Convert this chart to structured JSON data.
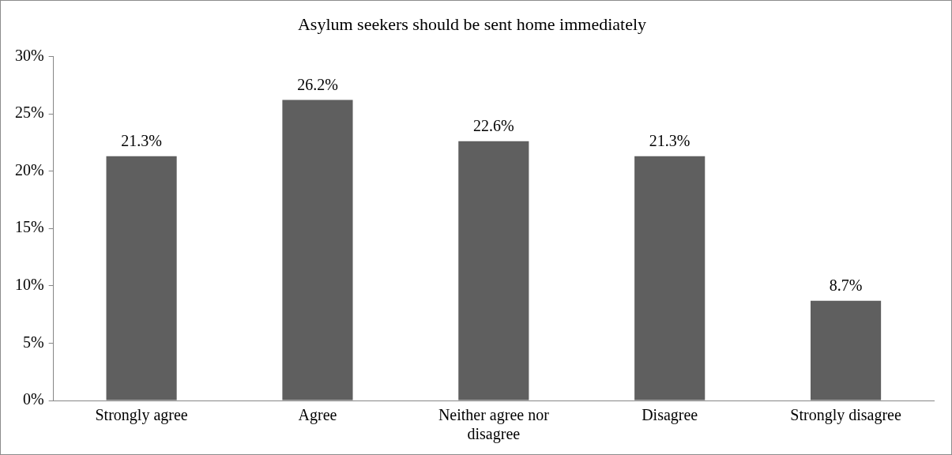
{
  "chart_data": {
    "type": "bar",
    "title": "Asylum seekers should be sent home immediately",
    "categories": [
      "Strongly agree",
      "Agree",
      "Neither agree nor disagree",
      "Disagree",
      "Strongly disagree"
    ],
    "values": [
      21.3,
      26.2,
      22.6,
      21.3,
      8.7
    ],
    "value_labels": [
      "21.3%",
      "26.2%",
      "22.6%",
      "21.3%",
      "8.7%"
    ],
    "color": "#5f5f5f",
    "ylim": [
      0,
      30
    ],
    "yticks": [
      {
        "value": 0,
        "label": "0%"
      },
      {
        "value": 5,
        "label": "5%"
      },
      {
        "value": 10,
        "label": "10%"
      },
      {
        "value": 15,
        "label": "15%"
      },
      {
        "value": 20,
        "label": "20%"
      },
      {
        "value": 25,
        "label": "25%"
      },
      {
        "value": 30,
        "label": "30%"
      }
    ],
    "grid": false,
    "legend": false
  }
}
